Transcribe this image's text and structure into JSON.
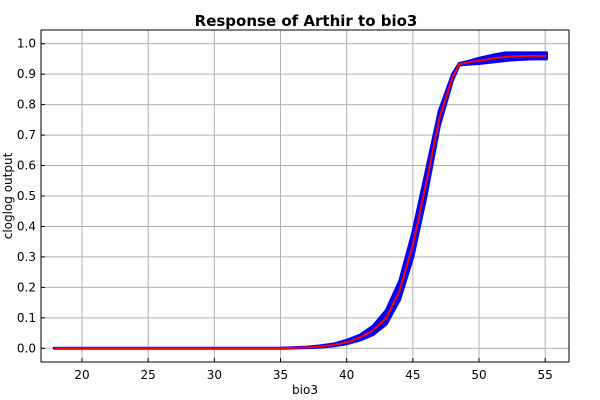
{
  "chart_data": {
    "type": "line",
    "title": "Response of Arthir to bio3",
    "xlabel": "bio3",
    "ylabel": "cloglog output",
    "xlim": [
      16.9,
      56.8
    ],
    "ylim": [
      -0.045,
      1.045
    ],
    "xticks": [
      20,
      25,
      30,
      35,
      40,
      45,
      50,
      55
    ],
    "yticks": [
      0.0,
      0.1,
      0.2,
      0.3,
      0.4,
      0.5,
      0.6,
      0.7,
      0.8,
      0.9,
      1.0
    ],
    "xtick_labels": [
      "20",
      "25",
      "30",
      "35",
      "40",
      "45",
      "50",
      "55"
    ],
    "ytick_labels": [
      "0.0",
      "0.1",
      "0.2",
      "0.3",
      "0.4",
      "0.5",
      "0.6",
      "0.7",
      "0.8",
      "0.9",
      "1.0"
    ],
    "grid": true,
    "series": [
      {
        "role": "band",
        "color": "#0000ff",
        "x": [
          17.9,
          25,
          30,
          35,
          37,
          38,
          39,
          40,
          41,
          42,
          43,
          44,
          45,
          46,
          47,
          48,
          48.5,
          49,
          50,
          51,
          52,
          53,
          54,
          55.1
        ],
        "lower": [
          0.0,
          0.0,
          0.0,
          0.0,
          0.002,
          0.004,
          0.008,
          0.015,
          0.027,
          0.045,
          0.08,
          0.16,
          0.3,
          0.5,
          0.73,
          0.88,
          0.93,
          0.932,
          0.935,
          0.94,
          0.945,
          0.948,
          0.95,
          0.95
        ],
        "upper": [
          0.0,
          0.0,
          0.0,
          0.0,
          0.004,
          0.008,
          0.014,
          0.026,
          0.043,
          0.073,
          0.125,
          0.22,
          0.38,
          0.58,
          0.78,
          0.9,
          0.935,
          0.94,
          0.952,
          0.962,
          0.97,
          0.97,
          0.97,
          0.97
        ]
      },
      {
        "role": "mean",
        "color": "#ff0000",
        "x": [
          17.9,
          25,
          30,
          35,
          37,
          38,
          39,
          40,
          41,
          42,
          43,
          44,
          45,
          46,
          47,
          48,
          48.5,
          49,
          50,
          51,
          52,
          53,
          54,
          55.1
        ],
        "values": [
          0.0,
          0.0,
          0.0,
          0.0,
          0.003,
          0.006,
          0.011,
          0.02,
          0.035,
          0.059,
          0.1,
          0.19,
          0.34,
          0.54,
          0.755,
          0.89,
          0.933,
          0.937,
          0.944,
          0.951,
          0.957,
          0.959,
          0.96,
          0.96
        ]
      }
    ]
  }
}
